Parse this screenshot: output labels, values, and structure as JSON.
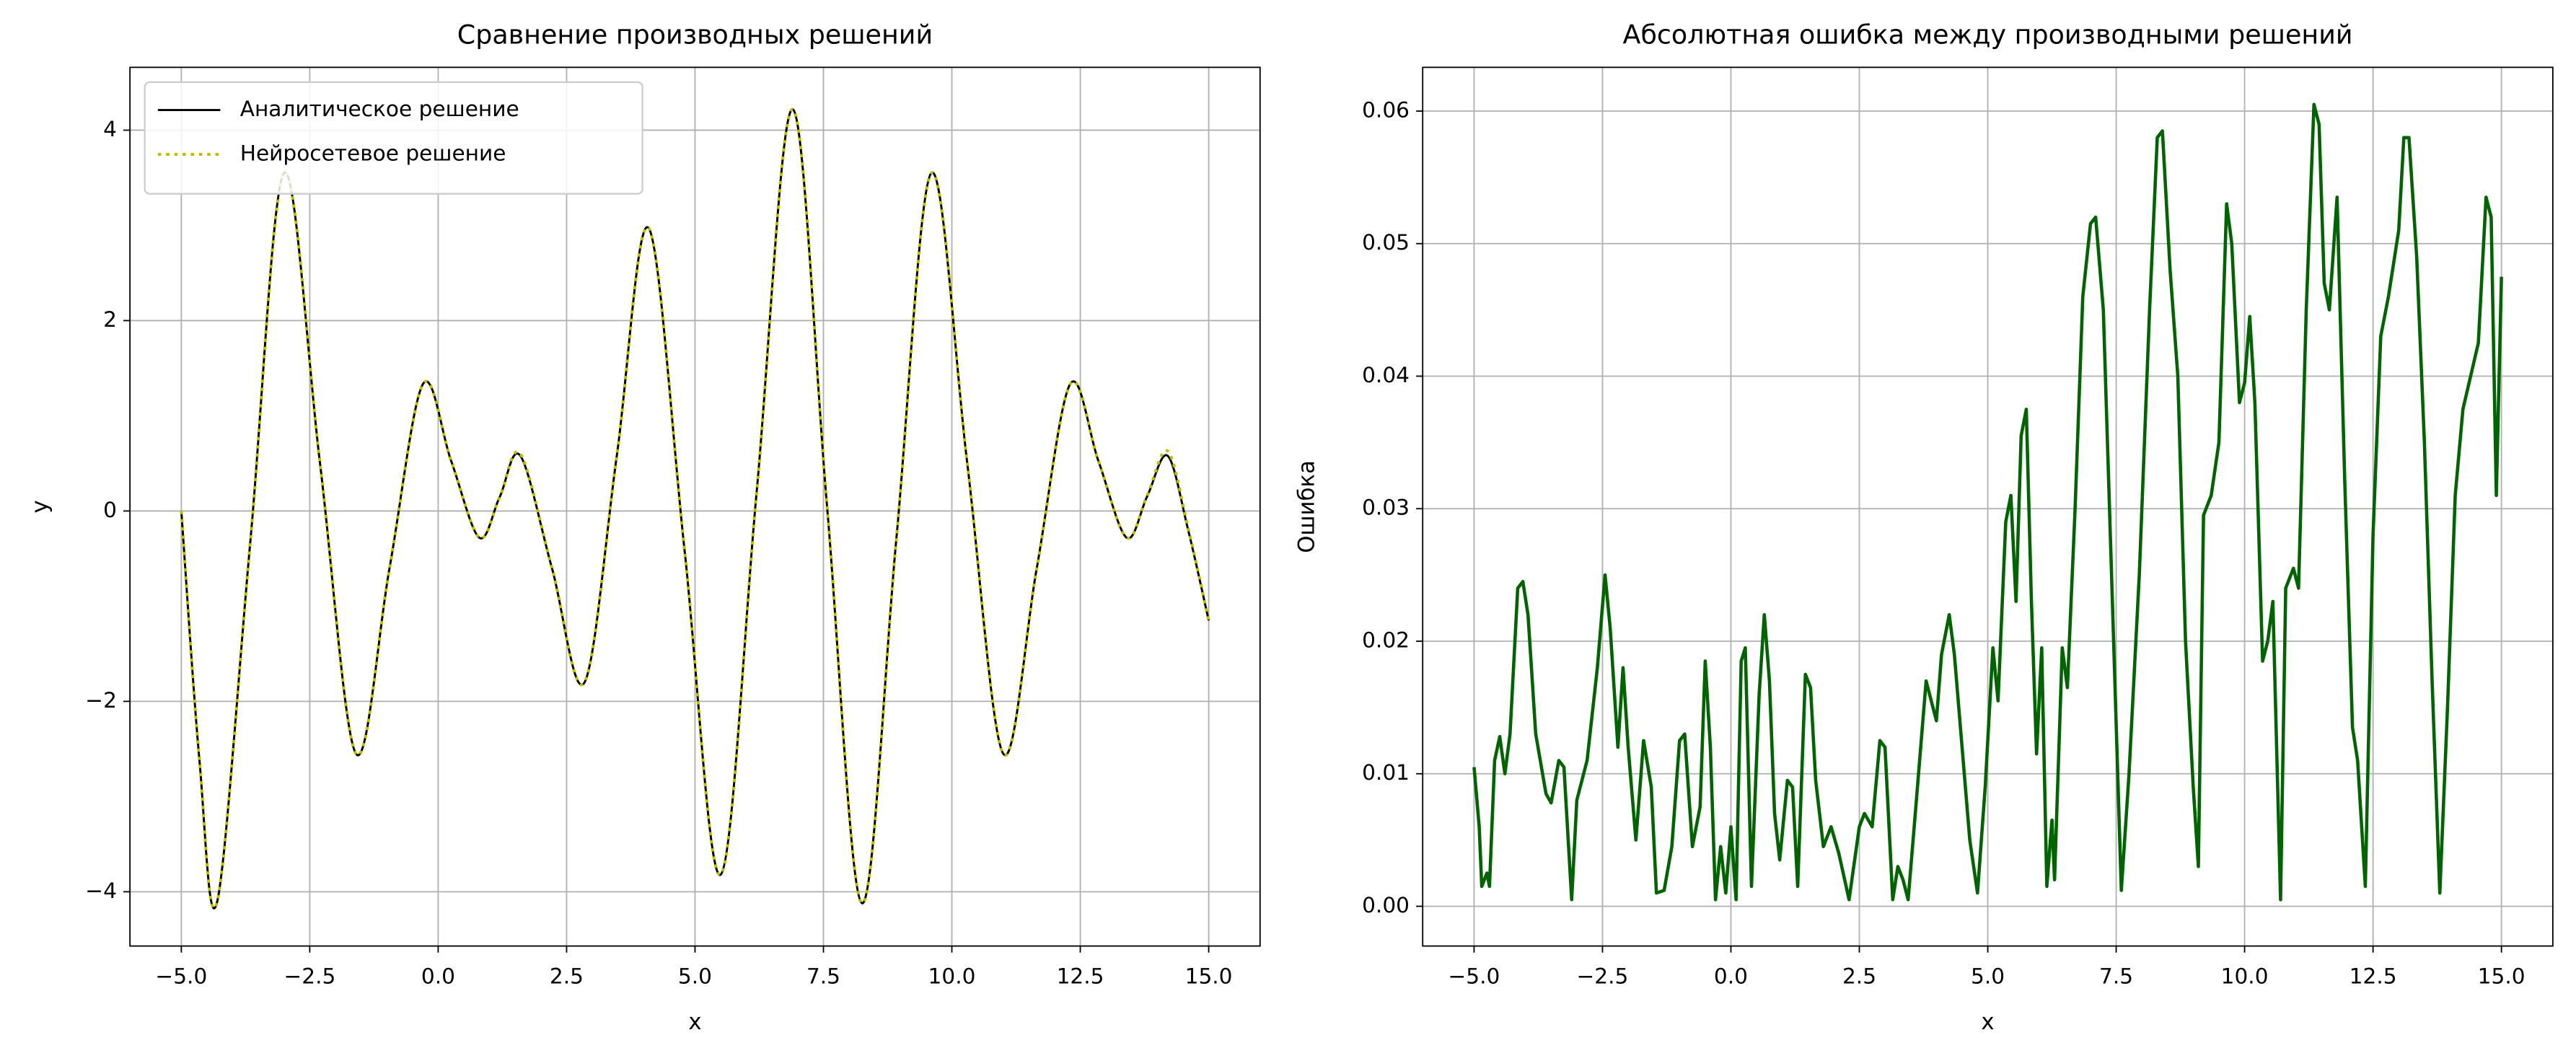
{
  "chart_data": [
    {
      "type": "line",
      "title": "Сравнение производных решений",
      "xlabel": "x",
      "ylabel": "y",
      "xlim": [
        -6,
        16
      ],
      "ylim": [
        -4.57,
        4.66
      ],
      "xticks": [
        {
          "value": -5,
          "label": "−5.0"
        },
        {
          "value": -2.5,
          "label": "−2.5"
        },
        {
          "value": 0,
          "label": "0.0"
        },
        2.5,
        {
          "value": 5,
          "label": "5.0"
        },
        7.5,
        {
          "value": 10,
          "label": "10.0"
        },
        12.5,
        {
          "value": 15,
          "label": "15.0"
        }
      ],
      "yticks": [
        {
          "value": -4,
          "label": "−4"
        },
        {
          "value": -2,
          "label": "−2"
        },
        0,
        2,
        4
      ],
      "grid": true,
      "legend": "upper left",
      "smooth": true,
      "x": [
        -5,
        -4.65,
        -4.3,
        -3.65,
        -3.0,
        -2.3,
        -1.6,
        -0.95,
        -0.3,
        0.25,
        0.8,
        1.2,
        1.6,
        2.22,
        2.85,
        3.48,
        4.1,
        4.8,
        5.5,
        6.2,
        6.9,
        7.57,
        8.25,
        8.92,
        9.6,
        10.3,
        11.0,
        11.65,
        12.3,
        12.85,
        13.4,
        13.8,
        14.2,
        14.6,
        15
      ],
      "series": [
        {
          "name": "Аналитическое решение",
          "color": "#000000",
          "style": "solid",
          "width": 1.3,
          "values": [
            0,
            -2.6,
            -4.1,
            -0.28,
            3.55,
            0.5,
            -2.55,
            -0.61,
            1.33,
            0.53,
            -0.28,
            0.15,
            0.58,
            -0.61,
            -1.8,
            0.59,
            2.97,
            -0.43,
            -3.82,
            0.2,
            4.22,
            0.05,
            -4.12,
            -0.29,
            3.55,
            0.5,
            -2.55,
            -0.61,
            1.33,
            0.53,
            -0.28,
            0.15,
            0.58,
            -0.2,
            -1.15
          ]
        },
        {
          "name": "Нейросетевое решение",
          "color": "#bfbf00",
          "style": "dotted",
          "width": 1.8,
          "values": [
            0,
            -2.6,
            -4.1,
            -0.28,
            3.55,
            0.5,
            -2.55,
            -0.61,
            1.33,
            0.53,
            -0.28,
            0.15,
            0.6,
            -0.61,
            -1.8,
            0.59,
            2.97,
            -0.43,
            -3.82,
            0.2,
            4.22,
            0.05,
            -4.12,
            -0.29,
            3.55,
            0.5,
            -2.55,
            -0.61,
            1.33,
            0.53,
            -0.28,
            0.16,
            0.63,
            -0.18,
            -1.15
          ]
        }
      ]
    },
    {
      "type": "line",
      "title": "Абсолютная ошибка между производными решений",
      "xlabel": "x",
      "ylabel": "Ошибка",
      "xlim": [
        -6,
        16
      ],
      "ylim": [
        -0.003,
        0.0633
      ],
      "xticks": [
        {
          "value": -5,
          "label": "−5.0"
        },
        {
          "value": -2.5,
          "label": "−2.5"
        },
        {
          "value": 0,
          "label": "0.0"
        },
        2.5,
        {
          "value": 5,
          "label": "5.0"
        },
        7.5,
        {
          "value": 10,
          "label": "10.0"
        },
        12.5,
        {
          "value": 15,
          "label": "15.0"
        }
      ],
      "yticks": [
        {
          "value": 0,
          "label": "0.00"
        },
        0.01,
        0.02,
        0.03,
        0.04,
        0.05,
        0.06
      ],
      "grid": true,
      "smooth": false,
      "x": [
        -5.0,
        -4.9,
        -4.85,
        -4.75,
        -4.7,
        -4.6,
        -4.5,
        -4.4,
        -4.3,
        -4.15,
        -4.05,
        -3.95,
        -3.8,
        -3.6,
        -3.5,
        -3.35,
        -3.25,
        -3.1,
        -3.0,
        -2.8,
        -2.6,
        -2.45,
        -2.35,
        -2.2,
        -2.1,
        -2.0,
        -1.85,
        -1.7,
        -1.55,
        -1.45,
        -1.3,
        -1.15,
        -1.0,
        -0.9,
        -0.75,
        -0.6,
        -0.5,
        -0.4,
        -0.3,
        -0.2,
        -0.1,
        0.0,
        0.1,
        0.2,
        0.28,
        0.4,
        0.55,
        0.65,
        0.75,
        0.85,
        0.95,
        1.1,
        1.2,
        1.3,
        1.45,
        1.55,
        1.65,
        1.8,
        1.95,
        2.1,
        2.3,
        2.5,
        2.6,
        2.75,
        2.9,
        3.0,
        3.15,
        3.25,
        3.35,
        3.45,
        3.6,
        3.8,
        3.9,
        4.0,
        4.1,
        4.25,
        4.35,
        4.5,
        4.65,
        4.8,
        4.95,
        5.1,
        5.2,
        5.35,
        5.45,
        5.55,
        5.65,
        5.75,
        5.85,
        5.95,
        6.05,
        6.15,
        6.25,
        6.3,
        6.45,
        6.55,
        6.7,
        6.85,
        7.0,
        7.1,
        7.25,
        7.45,
        7.6,
        7.75,
        7.95,
        8.15,
        8.3,
        8.4,
        8.55,
        8.7,
        8.85,
        9.0,
        9.1,
        9.2,
        9.35,
        9.5,
        9.65,
        9.75,
        9.9,
        10.0,
        10.1,
        10.2,
        10.35,
        10.45,
        10.55,
        10.7,
        10.8,
        10.95,
        11.05,
        11.2,
        11.35,
        11.45,
        11.55,
        11.65,
        11.8,
        11.95,
        12.1,
        12.2,
        12.35,
        12.5,
        12.65,
        12.8,
        13.0,
        13.1,
        13.2,
        13.35,
        13.5,
        13.65,
        13.8,
        13.95,
        14.1,
        14.25,
        14.4,
        14.55,
        14.7,
        14.8,
        14.9,
        15.0
      ],
      "series": [
        {
          "color": "#006400",
          "style": "solid",
          "width": 2,
          "values": [
            0.0105,
            0.006,
            0.0015,
            0.0025,
            0.0015,
            0.011,
            0.0128,
            0.01,
            0.013,
            0.024,
            0.0245,
            0.022,
            0.013,
            0.0085,
            0.0078,
            0.011,
            0.0105,
            0.0005,
            0.008,
            0.011,
            0.018,
            0.025,
            0.021,
            0.012,
            0.018,
            0.012,
            0.005,
            0.0125,
            0.009,
            0.001,
            0.0012,
            0.0045,
            0.0125,
            0.013,
            0.0045,
            0.0075,
            0.0185,
            0.012,
            0.0005,
            0.0045,
            0.001,
            0.006,
            0.0005,
            0.0185,
            0.0195,
            0.0015,
            0.016,
            0.022,
            0.017,
            0.007,
            0.0035,
            0.0095,
            0.009,
            0.0015,
            0.0175,
            0.0165,
            0.0095,
            0.0045,
            0.006,
            0.004,
            0.0005,
            0.006,
            0.007,
            0.006,
            0.0125,
            0.012,
            0.0005,
            0.003,
            0.002,
            0.0005,
            0.0075,
            0.017,
            0.0155,
            0.014,
            0.019,
            0.022,
            0.019,
            0.012,
            0.005,
            0.001,
            0.009,
            0.0195,
            0.0155,
            0.029,
            0.031,
            0.023,
            0.0355,
            0.0375,
            0.023,
            0.0115,
            0.0195,
            0.0015,
            0.0065,
            0.002,
            0.0195,
            0.0165,
            0.03,
            0.046,
            0.0515,
            0.052,
            0.045,
            0.02,
            0.0012,
            0.01,
            0.025,
            0.045,
            0.058,
            0.0585,
            0.048,
            0.04,
            0.02,
            0.009,
            0.003,
            0.0295,
            0.031,
            0.035,
            0.053,
            0.05,
            0.038,
            0.0395,
            0.0445,
            0.038,
            0.0185,
            0.02,
            0.023,
            0.0005,
            0.024,
            0.0255,
            0.024,
            0.045,
            0.0605,
            0.059,
            0.047,
            0.045,
            0.0535,
            0.032,
            0.0135,
            0.011,
            0.0015,
            0.028,
            0.043,
            0.046,
            0.051,
            0.058,
            0.058,
            0.049,
            0.035,
            0.017,
            0.001,
            0.015,
            0.031,
            0.0375,
            0.04,
            0.0425,
            0.0535,
            0.052,
            0.031,
            0.0475
          ]
        }
      ]
    }
  ]
}
